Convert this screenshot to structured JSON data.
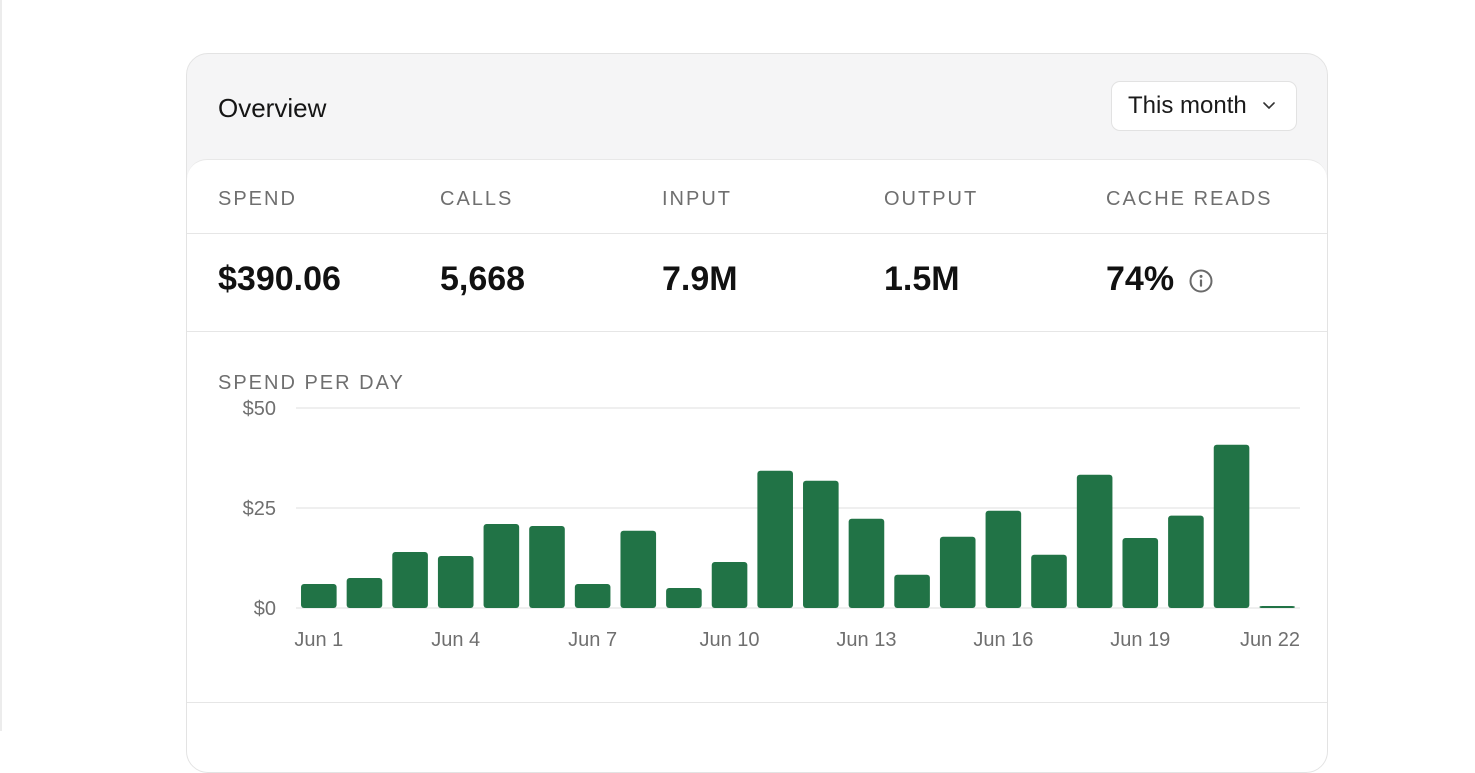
{
  "overview": {
    "title": "Overview",
    "period_select": {
      "value": "This month",
      "icon": "chevron-down-icon"
    }
  },
  "stats": {
    "labels": [
      "SPEND",
      "CALLS",
      "INPUT",
      "OUTPUT",
      "CACHE READS"
    ],
    "values": [
      "$390.06",
      "5,668",
      "7.9M",
      "1.5M",
      "74%"
    ],
    "info_icon": "info-circle-icon"
  },
  "chart_section": {
    "title": "SPEND PER DAY"
  },
  "colors": {
    "bar": "#217346",
    "grid": "#e5e5e5",
    "axis_text": "#6f6f6f"
  },
  "chart_data": {
    "type": "bar",
    "title": "SPEND PER DAY",
    "categories": [
      "Jun 1",
      "Jun 2",
      "Jun 3",
      "Jun 4",
      "Jun 5",
      "Jun 6",
      "Jun 7",
      "Jun 8",
      "Jun 9",
      "Jun 10",
      "Jun 11",
      "Jun 12",
      "Jun 13",
      "Jun 14",
      "Jun 15",
      "Jun 16",
      "Jun 17",
      "Jun 18",
      "Jun 19",
      "Jun 20",
      "Jun 21",
      "Jun 22"
    ],
    "values": [
      6,
      7.5,
      14,
      13,
      21,
      20.5,
      6,
      19.3,
      5,
      11.5,
      34.3,
      31.8,
      22.3,
      8.3,
      17.8,
      24.3,
      13.3,
      33.3,
      17.5,
      23.1,
      40.8,
      0.5
    ],
    "x_tick_labels": [
      "Jun 1",
      "Jun 4",
      "Jun 7",
      "Jun 10",
      "Jun 13",
      "Jun 16",
      "Jun 19",
      "Jun 22"
    ],
    "y_tick_labels": [
      "$50",
      "$25",
      "$0"
    ],
    "y_ticks": [
      50,
      25,
      0
    ],
    "ylim": [
      0,
      50
    ],
    "xlabel": "",
    "ylabel": "",
    "grid": true,
    "legend": false
  }
}
